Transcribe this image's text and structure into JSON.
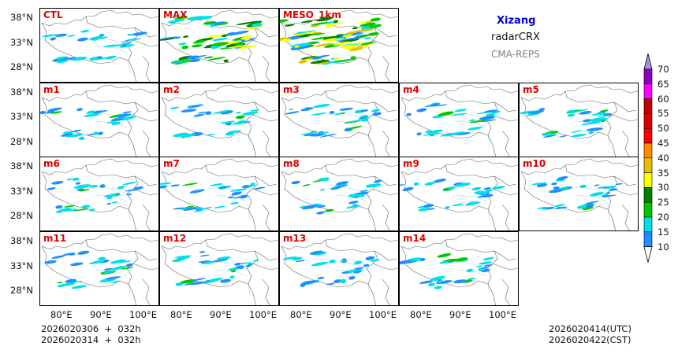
{
  "header": {
    "region": "Xizang",
    "variable": "radarCRX",
    "model": "CMA-REPS"
  },
  "colors": {
    "region": "#0000dd",
    "variable": "#000000",
    "model": "#808080",
    "panel_label": "#e00000"
  },
  "panels": [
    {
      "label": "CTL",
      "row": 0,
      "col": 0,
      "intensity": 1
    },
    {
      "label": "MAX",
      "row": 0,
      "col": 1,
      "intensity": 3
    },
    {
      "label": "MESO_1km",
      "row": 0,
      "col": 2,
      "intensity": 4
    },
    {
      "label": "m1",
      "row": 1,
      "col": 0,
      "intensity": 1
    },
    {
      "label": "m2",
      "row": 1,
      "col": 1,
      "intensity": 1
    },
    {
      "label": "m3",
      "row": 1,
      "col": 2,
      "intensity": 1
    },
    {
      "label": "m4",
      "row": 1,
      "col": 3,
      "intensity": 1
    },
    {
      "label": "m5",
      "row": 1,
      "col": 4,
      "intensity": 1
    },
    {
      "label": "m6",
      "row": 2,
      "col": 0,
      "intensity": 1
    },
    {
      "label": "m7",
      "row": 2,
      "col": 1,
      "intensity": 1
    },
    {
      "label": "m8",
      "row": 2,
      "col": 2,
      "intensity": 1
    },
    {
      "label": "m9",
      "row": 2,
      "col": 3,
      "intensity": 1
    },
    {
      "label": "m10",
      "row": 2,
      "col": 4,
      "intensity": 1
    },
    {
      "label": "m11",
      "row": 3,
      "col": 0,
      "intensity": 1
    },
    {
      "label": "m12",
      "row": 3,
      "col": 1,
      "intensity": 1
    },
    {
      "label": "m13",
      "row": 3,
      "col": 2,
      "intensity": 1
    },
    {
      "label": "m14",
      "row": 3,
      "col": 3,
      "intensity": 1
    }
  ],
  "axes": {
    "yticks": [
      "38°N",
      "33°N",
      "28°N"
    ],
    "xticks": [
      "80°E",
      "90°E",
      "100°E"
    ]
  },
  "footer": {
    "init1": "2026020306  +  032h",
    "init2": "2026020314  +  032h",
    "valid_utc": "2026020414(UTC)",
    "valid_cst": "2026020422(CST)"
  },
  "colorbar": {
    "labels": [
      "70",
      "65",
      "60",
      "55",
      "50",
      "45",
      "40",
      "35",
      "30",
      "25",
      "20",
      "15",
      "10"
    ],
    "colors": [
      "#1e90ff",
      "#00e0e8",
      "#00c800",
      "#008000",
      "#ffff00",
      "#e6c000",
      "#ff8c00",
      "#ff0000",
      "#dd0000",
      "#c00000",
      "#ff00ff",
      "#9000c0"
    ],
    "over": "#a890e0",
    "under": "#ffffff"
  }
}
